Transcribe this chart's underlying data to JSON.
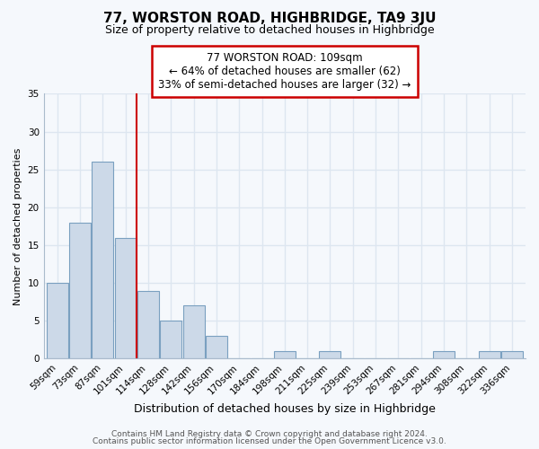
{
  "title": "77, WORSTON ROAD, HIGHBRIDGE, TA9 3JU",
  "subtitle": "Size of property relative to detached houses in Highbridge",
  "xlabel": "Distribution of detached houses by size in Highbridge",
  "ylabel": "Number of detached properties",
  "bar_labels": [
    "59sqm",
    "73sqm",
    "87sqm",
    "101sqm",
    "114sqm",
    "128sqm",
    "142sqm",
    "156sqm",
    "170sqm",
    "184sqm",
    "198sqm",
    "211sqm",
    "225sqm",
    "239sqm",
    "253sqm",
    "267sqm",
    "281sqm",
    "294sqm",
    "308sqm",
    "322sqm",
    "336sqm"
  ],
  "bar_values": [
    10,
    18,
    26,
    16,
    9,
    5,
    7,
    3,
    0,
    0,
    1,
    0,
    1,
    0,
    0,
    0,
    0,
    1,
    0,
    1,
    1
  ],
  "bar_fill_color": "#ccd9e8",
  "bar_edge_color": "#7aa0c0",
  "vline_x": 3.5,
  "vline_color": "#cc0000",
  "ylim": [
    0,
    35
  ],
  "yticks": [
    0,
    5,
    10,
    15,
    20,
    25,
    30,
    35
  ],
  "annotation_title": "77 WORSTON ROAD: 109sqm",
  "annotation_line1": "← 64% of detached houses are smaller (62)",
  "annotation_line2": "33% of semi-detached houses are larger (32) →",
  "annotation_box_facecolor": "#ffffff",
  "annotation_box_edgecolor": "#cc0000",
  "footer1": "Contains HM Land Registry data © Crown copyright and database right 2024.",
  "footer2": "Contains public sector information licensed under the Open Government Licence v3.0.",
  "bg_color": "#f5f8fc",
  "plot_bg_color": "#f5f8fc",
  "grid_color": "#dde6f0",
  "spine_color": "#aabbcc",
  "title_fontsize": 11,
  "subtitle_fontsize": 9,
  "xlabel_fontsize": 9,
  "ylabel_fontsize": 8,
  "tick_fontsize": 7.5,
  "footer_fontsize": 6.5
}
